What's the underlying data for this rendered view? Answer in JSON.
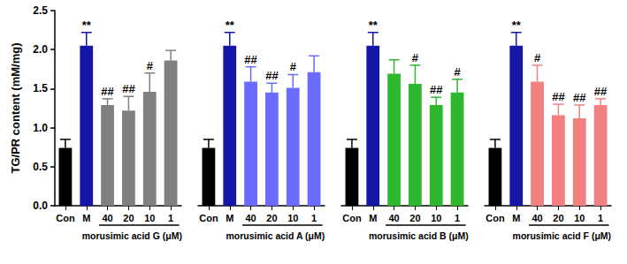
{
  "chart_data": [
    {
      "type": "bar",
      "ylabel": "TG/PR content (mM/mg)",
      "xlabel": "morusimic acid G (μM)",
      "categories": [
        "Con",
        "M",
        "40",
        "20",
        "10",
        "1"
      ],
      "values": [
        0.74,
        2.05,
        1.29,
        1.22,
        1.46,
        1.86
      ],
      "errors": [
        0.11,
        0.17,
        0.08,
        0.18,
        0.24,
        0.13
      ],
      "annotations": [
        null,
        "**",
        "##",
        "##",
        "#",
        null
      ],
      "colors": [
        "#000000",
        "#1515a8",
        "#808080",
        "#808080",
        "#808080",
        "#808080"
      ],
      "ylim": [
        0,
        2.5
      ],
      "yticks": [
        {
          "value": 0,
          "label": "0.0"
        },
        0.5,
        {
          "value": 1,
          "label": "1.0"
        },
        1.5,
        {
          "value": 2,
          "label": "2.0"
        },
        2.5
      ],
      "grid": false
    },
    {
      "type": "bar",
      "xlabel": "morusimic acid A (μM)",
      "categories": [
        "Con",
        "M",
        "40",
        "20",
        "10",
        "1"
      ],
      "values": [
        0.74,
        2.05,
        1.59,
        1.45,
        1.51,
        1.71
      ],
      "errors": [
        0.11,
        0.17,
        0.19,
        0.12,
        0.17,
        0.21
      ],
      "annotations": [
        null,
        "**",
        "##",
        "##",
        "#",
        null
      ],
      "colors": [
        "#000000",
        "#1515a8",
        "#6b6bff",
        "#6b6bff",
        "#6b6bff",
        "#6b6bff"
      ],
      "ylim": [
        0,
        2.5
      ],
      "yticks": [
        {
          "value": 0,
          "label": "0.0"
        },
        0.5,
        {
          "value": 1,
          "label": "1.0"
        },
        1.5,
        {
          "value": 2,
          "label": "2.0"
        },
        2.5
      ],
      "tick_labels": "x",
      "grid": false
    },
    {
      "type": "bar",
      "xlabel": "morusimic acid B (μM)",
      "categories": [
        "Con",
        "M",
        "40",
        "20",
        "10",
        "1"
      ],
      "values": [
        0.74,
        2.05,
        1.69,
        1.56,
        1.29,
        1.45
      ],
      "errors": [
        0.11,
        0.17,
        0.18,
        0.24,
        0.1,
        0.17
      ],
      "annotations": [
        null,
        "**",
        null,
        "#",
        "##",
        "#"
      ],
      "colors": [
        "#000000",
        "#1515a8",
        "#2db82d",
        "#2db82d",
        "#2db82d",
        "#2db82d"
      ],
      "ylim": [
        0,
        2.5
      ],
      "yticks": [
        {
          "value": 0,
          "label": "0.0"
        },
        0.5,
        {
          "value": 1,
          "label": "1.0"
        },
        1.5,
        {
          "value": 2,
          "label": "2.0"
        },
        2.5
      ],
      "tick_labels": "x",
      "grid": false
    },
    {
      "type": "bar",
      "xlabel": "morusimic acid F (μM)",
      "categories": [
        "Con",
        "M",
        "40",
        "20",
        "10",
        "1"
      ],
      "values": [
        0.74,
        2.05,
        1.59,
        1.16,
        1.12,
        1.29
      ],
      "errors": [
        0.11,
        0.17,
        0.21,
        0.14,
        0.17,
        0.08
      ],
      "annotations": [
        null,
        "**",
        "#",
        "##",
        "##",
        "##"
      ],
      "colors": [
        "#000000",
        "#1515a8",
        "#f28080",
        "#f28080",
        "#f28080",
        "#f28080"
      ],
      "ylim": [
        0,
        2.5
      ],
      "yticks": [
        {
          "value": 0,
          "label": "0.0"
        },
        0.5,
        {
          "value": 1,
          "label": "1.0"
        },
        1.5,
        {
          "value": 2,
          "label": "2.0"
        },
        2.5
      ],
      "tick_labels": "x",
      "grid": false
    }
  ]
}
